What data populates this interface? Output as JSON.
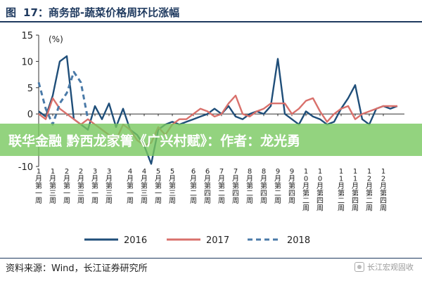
{
  "figure": {
    "label": "图",
    "number": "17：",
    "title": "商务部-蔬菜价格周环比涨幅"
  },
  "banner_text": "联华金融 黔西龙家箐《广兴村赋》：作者：龙光勇",
  "source_text": "资料来源：Wind，长江证券研究所",
  "watermark_text": "长江宏观固收",
  "chart_data": {
    "type": "line",
    "unit_label": "(%)",
    "ylim": [
      -10,
      15
    ],
    "yticks": [
      -10,
      -5,
      0,
      5,
      10,
      15
    ],
    "xlim": [
      0,
      52
    ],
    "xtick_labels": [
      {
        "x": 0,
        "label": "1月第一周"
      },
      {
        "x": 2,
        "label": "1月第三周"
      },
      {
        "x": 4,
        "label": "2月第一周"
      },
      {
        "x": 6,
        "label": "2月第三周"
      },
      {
        "x": 8,
        "label": "3月第一周"
      },
      {
        "x": 10,
        "label": "3月第三周"
      },
      {
        "x": 13,
        "label": "4月第一周"
      },
      {
        "x": 15,
        "label": "4月第三周"
      },
      {
        "x": 17,
        "label": "5月第一周"
      },
      {
        "x": 19,
        "label": "5月第三周"
      },
      {
        "x": 22,
        "label": "6月第二周"
      },
      {
        "x": 24,
        "label": "6月第四周"
      },
      {
        "x": 26,
        "label": "7月第二周"
      },
      {
        "x": 28,
        "label": "7月第四周"
      },
      {
        "x": 30,
        "label": "8月第二周"
      },
      {
        "x": 32,
        "label": "8月第四周"
      },
      {
        "x": 34,
        "label": "9月第二周"
      },
      {
        "x": 36,
        "label": "9月第四周"
      },
      {
        "x": 38,
        "label": "10月第二周"
      },
      {
        "x": 40,
        "label": "10月第四周"
      },
      {
        "x": 43,
        "label": "11月第二周"
      },
      {
        "x": 45,
        "label": "11月第四周"
      },
      {
        "x": 47,
        "label": "12月第二周"
      },
      {
        "x": 49,
        "label": "12月第四周"
      }
    ],
    "series": [
      {
        "name": "2016",
        "color": "#1f4e79",
        "dash": "solid",
        "x": [
          0,
          1,
          2,
          3,
          4,
          5,
          6,
          7,
          8,
          9,
          10,
          11,
          12,
          13,
          14,
          15,
          16,
          17,
          18,
          19,
          20,
          21,
          22,
          23,
          24,
          25,
          26,
          27,
          28,
          29,
          30,
          31,
          32,
          33,
          34,
          35,
          36,
          37,
          38,
          39,
          40,
          41,
          42,
          43,
          44,
          45,
          46,
          47,
          48,
          49,
          50,
          51
        ],
        "y": [
          0.5,
          -0.5,
          3.5,
          10,
          11,
          -1,
          -2,
          -3,
          1.5,
          -1,
          2,
          -2.5,
          1,
          -3,
          -4,
          -6,
          -9.5,
          -3,
          -2,
          -1.5,
          -2,
          -1.5,
          -1,
          -0.5,
          0,
          1,
          0,
          1.5,
          -0.5,
          -1,
          0,
          0.5,
          0,
          1.5,
          10.5,
          0,
          -1,
          -2,
          0.5,
          -0.5,
          -1,
          -2,
          -1.5,
          1,
          3,
          5.5,
          -1,
          -2,
          1,
          1.5,
          1,
          1.5
        ]
      },
      {
        "name": "2017",
        "color": "#d9706b",
        "dash": "solid",
        "x": [
          0,
          1,
          2,
          3,
          4,
          5,
          6,
          7,
          8,
          9,
          10,
          11,
          12,
          13,
          14,
          15,
          16,
          17,
          18,
          19,
          20,
          21,
          22,
          23,
          24,
          25,
          26,
          27,
          28,
          29,
          30,
          31,
          32,
          33,
          34,
          35,
          36,
          37,
          38,
          39,
          40,
          41,
          42,
          43,
          44,
          45,
          46,
          47,
          48,
          49,
          50,
          51
        ],
        "y": [
          0,
          -1,
          3,
          1,
          0,
          -1,
          -2,
          -1,
          -2,
          -3,
          -4,
          -5,
          -2,
          -3,
          -5,
          -6,
          -5.5,
          -2.5,
          -4,
          -2,
          -1,
          -1,
          0,
          1,
          0.5,
          -0.5,
          0,
          2,
          3.5,
          0,
          -0.5,
          0.5,
          1,
          2,
          2,
          2,
          0,
          1,
          2.5,
          3,
          0.5,
          -1.5,
          0,
          1,
          1.5,
          -1,
          0,
          0.5,
          1,
          1.5,
          1.5,
          1.5
        ]
      },
      {
        "name": "2018",
        "color": "#4a7aa8",
        "dash": "dashed",
        "x": [
          0,
          1,
          2,
          3,
          4,
          5,
          6,
          7
        ],
        "y": [
          6,
          1,
          -2,
          2,
          4,
          8,
          6,
          -1
        ]
      }
    ],
    "legend_position": "bottom",
    "grid": false
  }
}
